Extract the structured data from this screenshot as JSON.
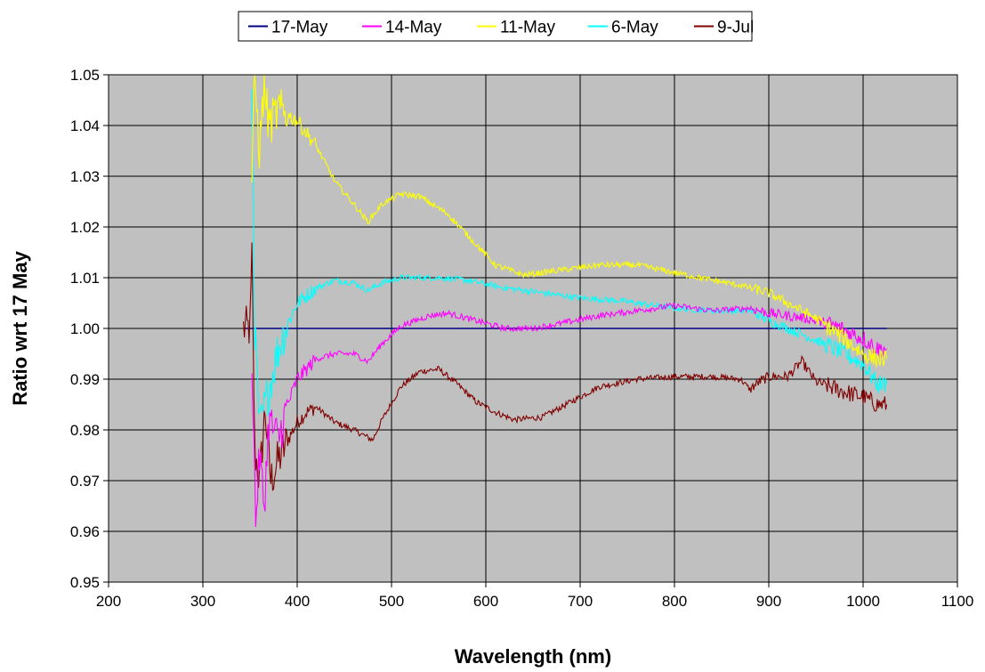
{
  "chart_data": {
    "type": "line",
    "title": "",
    "xlabel": "Wavelength (nm)",
    "ylabel": "Ratio wrt 17 May",
    "xlim": [
      200,
      1100
    ],
    "ylim": [
      0.95,
      1.05
    ],
    "x_ticks": [
      200,
      300,
      400,
      500,
      600,
      700,
      800,
      900,
      1000,
      1100
    ],
    "y_ticks": [
      0.95,
      0.96,
      0.97,
      0.98,
      0.99,
      1.0,
      1.01,
      1.02,
      1.03,
      1.04,
      1.05
    ],
    "x_tick_labels": [
      "200",
      "300",
      "400",
      "500",
      "600",
      "700",
      "800",
      "900",
      "1000",
      "1100"
    ],
    "y_tick_labels": [
      "0.95",
      "0.96",
      "0.97",
      "0.98",
      "0.99",
      "1.00",
      "1.01",
      "1.02",
      "1.03",
      "1.04",
      "1.05"
    ],
    "grid": true,
    "plot_background": "#c0c0c0",
    "legend_position": "top-center",
    "series": [
      {
        "name": "17-May",
        "color": "#000080",
        "points": [
          [
            343,
            1.0
          ],
          [
            1025,
            1.0
          ]
        ]
      },
      {
        "name": "14-May",
        "color": "#ff00ff",
        "points": [
          [
            352,
            0.995
          ],
          [
            356,
            0.962
          ],
          [
            360,
            0.975
          ],
          [
            365,
            0.965
          ],
          [
            370,
            0.982
          ],
          [
            380,
            0.978
          ],
          [
            390,
            0.985
          ],
          [
            400,
            0.99
          ],
          [
            420,
            0.994
          ],
          [
            440,
            0.995
          ],
          [
            460,
            0.995
          ],
          [
            475,
            0.9935
          ],
          [
            490,
            0.997
          ],
          [
            510,
            1.0005
          ],
          [
            540,
            1.0025
          ],
          [
            560,
            1.003
          ],
          [
            590,
            1.0015
          ],
          [
            620,
            1.0
          ],
          [
            650,
            1.0
          ],
          [
            680,
            1.001
          ],
          [
            720,
            1.0025
          ],
          [
            760,
            1.0035
          ],
          [
            800,
            1.0045
          ],
          [
            840,
            1.0035
          ],
          [
            880,
            1.004
          ],
          [
            900,
            1.003
          ],
          [
            940,
            1.002
          ],
          [
            970,
            1.0005
          ],
          [
            1000,
            0.998
          ],
          [
            1015,
            0.996
          ],
          [
            1025,
            0.996
          ]
        ]
      },
      {
        "name": "11-May",
        "color": "#ffff00",
        "points": [
          [
            352,
            1.03
          ],
          [
            355,
            1.05
          ],
          [
            360,
            1.035
          ],
          [
            365,
            1.048
          ],
          [
            370,
            1.04
          ],
          [
            380,
            1.043
          ],
          [
            400,
            1.041
          ],
          [
            420,
            1.036
          ],
          [
            440,
            1.029
          ],
          [
            460,
            1.0245
          ],
          [
            475,
            1.021
          ],
          [
            490,
            1.0245
          ],
          [
            510,
            1.0265
          ],
          [
            530,
            1.026
          ],
          [
            560,
            1.0225
          ],
          [
            590,
            1.0165
          ],
          [
            610,
            1.0125
          ],
          [
            640,
            1.0105
          ],
          [
            680,
            1.0115
          ],
          [
            720,
            1.0125
          ],
          [
            760,
            1.0125
          ],
          [
            800,
            1.011
          ],
          [
            840,
            1.0095
          ],
          [
            870,
            1.0085
          ],
          [
            900,
            1.007
          ],
          [
            930,
            1.004
          ],
          [
            950,
            1.002
          ],
          [
            980,
            0.998
          ],
          [
            1000,
            0.995
          ],
          [
            1015,
            0.994
          ],
          [
            1025,
            0.994
          ]
        ]
      },
      {
        "name": "6-May",
        "color": "#00ffff",
        "points": [
          [
            352,
            1.046
          ],
          [
            355,
            1.0
          ],
          [
            360,
            0.98
          ],
          [
            370,
            0.988
          ],
          [
            380,
            0.996
          ],
          [
            390,
            1.001
          ],
          [
            400,
            1.005
          ],
          [
            420,
            1.008
          ],
          [
            440,
            1.0095
          ],
          [
            460,
            1.009
          ],
          [
            475,
            1.0075
          ],
          [
            490,
            1.009
          ],
          [
            510,
            1.01
          ],
          [
            550,
            1.01
          ],
          [
            580,
            1.0095
          ],
          [
            620,
            1.008
          ],
          [
            660,
            1.007
          ],
          [
            700,
            1.006
          ],
          [
            740,
            1.0055
          ],
          [
            780,
            1.0045
          ],
          [
            800,
            1.004
          ],
          [
            840,
            1.0035
          ],
          [
            880,
            1.0035
          ],
          [
            900,
            1.0015
          ],
          [
            940,
            0.9985
          ],
          [
            970,
            0.996
          ],
          [
            1000,
            0.993
          ],
          [
            1015,
            0.989
          ],
          [
            1025,
            0.989
          ]
        ]
      },
      {
        "name": "9-Jul",
        "color": "#800000",
        "points": [
          [
            343,
            1.0
          ],
          [
            350,
            1.0
          ],
          [
            352,
            1.014
          ],
          [
            355,
            0.976
          ],
          [
            360,
            0.97
          ],
          [
            366,
            0.984
          ],
          [
            372,
            0.97
          ],
          [
            380,
            0.974
          ],
          [
            390,
            0.978
          ],
          [
            400,
            0.9815
          ],
          [
            410,
            0.9835
          ],
          [
            420,
            0.9845
          ],
          [
            440,
            0.9815
          ],
          [
            460,
            0.98
          ],
          [
            480,
            0.978
          ],
          [
            490,
            0.982
          ],
          [
            510,
            0.9885
          ],
          [
            530,
            0.9915
          ],
          [
            550,
            0.992
          ],
          [
            570,
            0.989
          ],
          [
            590,
            0.9855
          ],
          [
            610,
            0.9835
          ],
          [
            630,
            0.982
          ],
          [
            660,
            0.9825
          ],
          [
            690,
            0.9855
          ],
          [
            720,
            0.9885
          ],
          [
            760,
            0.99
          ],
          [
            800,
            0.9905
          ],
          [
            840,
            0.9905
          ],
          [
            870,
            0.99
          ],
          [
            880,
            0.988
          ],
          [
            890,
            0.9895
          ],
          [
            900,
            0.9905
          ],
          [
            920,
            0.9905
          ],
          [
            935,
            0.9935
          ],
          [
            950,
            0.9895
          ],
          [
            980,
            0.9875
          ],
          [
            1000,
            0.9865
          ],
          [
            1015,
            0.985
          ],
          [
            1025,
            0.985
          ]
        ]
      }
    ]
  }
}
